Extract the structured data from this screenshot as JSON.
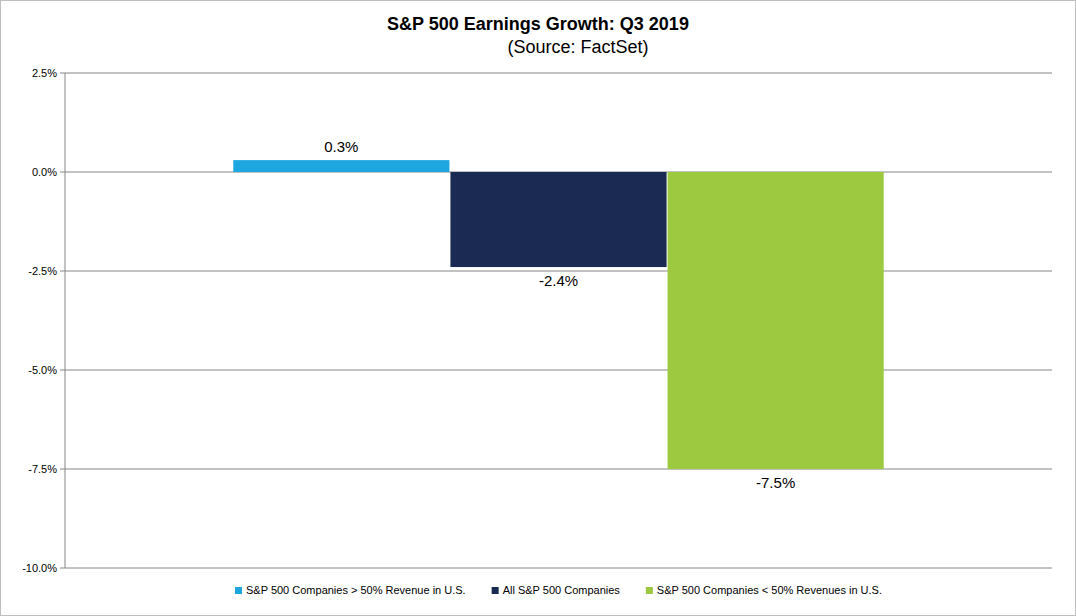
{
  "chart_data": {
    "type": "bar",
    "title": "S&P 500 Earnings Growth: Q3 2019",
    "subtitle": "(Source: FactSet)",
    "categories": [
      "S&P 500 Companies > 50% Revenue in U.S.",
      "All S&P 500 Companies",
      "S&P 500 Companies < 50% Revenues in U.S."
    ],
    "values": [
      0.3,
      -2.4,
      -7.5
    ],
    "value_labels": [
      "0.3%",
      "-2.4%",
      "-7.5%"
    ],
    "colors": [
      "#1ea6e0",
      "#1a2a52",
      "#9cc93f"
    ],
    "ylim": [
      -10,
      2.5
    ],
    "yticks": [
      {
        "value": 2.5,
        "label": "2.5%"
      },
      {
        "value": 0,
        "label": "0.0%"
      },
      {
        "value": -2.5,
        "label": "-2.5%"
      },
      {
        "value": -5,
        "label": "-5.0%"
      },
      {
        "value": -7.5,
        "label": "-7.5%"
      },
      {
        "value": -10,
        "label": "-10.0%"
      }
    ],
    "grid": true,
    "data_labels": true,
    "legend": "bottom",
    "tick_labels": "y"
  }
}
